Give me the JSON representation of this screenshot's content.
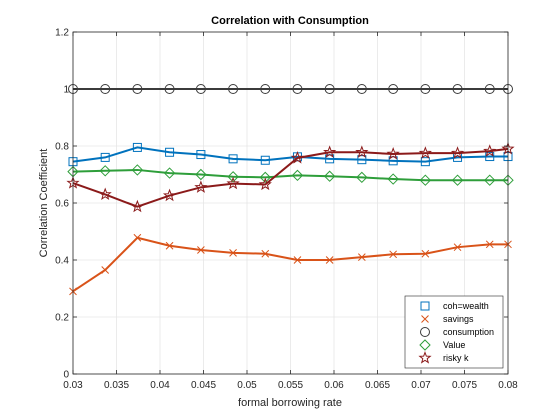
{
  "chart_data": {
    "type": "line",
    "title": "Correlation with Consumption",
    "xlabel": "formal borrowing rate",
    "ylabel": "Correlation Coefficient",
    "xlim": [
      0.03,
      0.08
    ],
    "ylim": [
      0,
      1.2
    ],
    "xticks": [
      "0.03",
      "0.035",
      "0.04",
      "0.045",
      "0.05",
      "0.055",
      "0.06",
      "0.065",
      "0.07",
      "0.075",
      "0.08"
    ],
    "yticks": [
      "0",
      "0.2",
      "0.4",
      "0.6",
      "0.8",
      "1",
      "1.2"
    ],
    "grid": true,
    "legend_position": "bottom-right",
    "x": [
      0.03,
      0.0337,
      0.0374,
      0.0411,
      0.0447,
      0.0484,
      0.0521,
      0.0558,
      0.0595,
      0.0632,
      0.0668,
      0.0705,
      0.0742,
      0.0779,
      0.08
    ],
    "series": [
      {
        "name": "coh=wealth",
        "color": "#0072BD",
        "marker": "square",
        "values": [
          0.745,
          0.76,
          0.795,
          0.778,
          0.77,
          0.755,
          0.75,
          0.762,
          0.755,
          0.752,
          0.748,
          0.745,
          0.76,
          0.763,
          0.763
        ]
      },
      {
        "name": "savings",
        "color": "#D95319",
        "marker": "x",
        "values": [
          0.29,
          0.365,
          0.478,
          0.45,
          0.435,
          0.425,
          0.422,
          0.4,
          0.4,
          0.41,
          0.42,
          0.422,
          0.445,
          0.455,
          0.455
        ]
      },
      {
        "name": "consumption",
        "color": "#3b3b3b",
        "marker": "circle",
        "values": [
          1,
          1,
          1,
          1,
          1,
          1,
          1,
          1,
          1,
          1,
          1,
          1,
          1,
          1,
          1
        ]
      },
      {
        "name": "Value",
        "color": "#2e9e3a",
        "marker": "diamond",
        "values": [
          0.71,
          0.713,
          0.716,
          0.705,
          0.7,
          0.692,
          0.69,
          0.697,
          0.694,
          0.69,
          0.684,
          0.68,
          0.68,
          0.68,
          0.68
        ]
      },
      {
        "name": "risky k",
        "color": "#8b1a1a",
        "marker": "star",
        "values": [
          0.67,
          0.63,
          0.587,
          0.626,
          0.655,
          0.668,
          0.665,
          0.758,
          0.778,
          0.778,
          0.772,
          0.775,
          0.775,
          0.782,
          0.79
        ]
      }
    ],
    "legend_entries": [
      "coh=wealth",
      "savings",
      "consumption",
      "Value",
      "risky k"
    ],
    "colors": {
      "axes_background": "#ffffff",
      "grid": "#e6e6e6",
      "axis": "#262626"
    }
  }
}
